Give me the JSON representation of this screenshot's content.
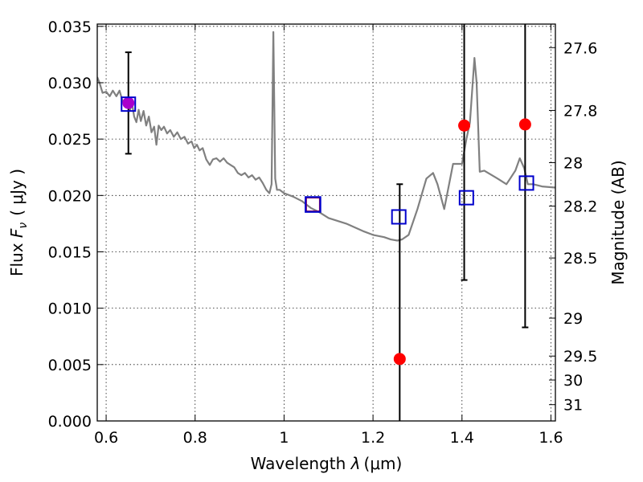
{
  "chart_data": {
    "type": "scatter",
    "title": "",
    "xlabel": "Wavelength  λ (μm)",
    "ylabel": "Flux  F_ν  ( μJy )",
    "ylabel_parts": {
      "prefix": "Flux ",
      "symbol": "F",
      "subscript": "ν",
      "unit": "( μJy )"
    },
    "xlabel_parts": {
      "prefix": "Wavelength ",
      "symbol": "λ",
      "unit": "(μm)"
    },
    "y2label": "Magnitude (AB)",
    "xlim": [
      0.58,
      1.61
    ],
    "ylim": [
      0.0,
      0.0352
    ],
    "grid": true,
    "x_ticks": [
      {
        "value": 0.6,
        "label": "0.6"
      },
      {
        "value": 0.8,
        "label": "0.8"
      },
      {
        "value": 1.0,
        "label": "1"
      },
      {
        "value": 1.2,
        "label": "1.2"
      },
      {
        "value": 1.4,
        "label": "1.4"
      },
      {
        "value": 1.6,
        "label": "1.6"
      }
    ],
    "y_ticks": [
      {
        "value": 0.0,
        "label": "0.000"
      },
      {
        "value": 0.005,
        "label": "0.005"
      },
      {
        "value": 0.01,
        "label": "0.010"
      },
      {
        "value": 0.015,
        "label": "0.015"
      },
      {
        "value": 0.02,
        "label": "0.020"
      },
      {
        "value": 0.025,
        "label": "0.025"
      },
      {
        "value": 0.03,
        "label": "0.030"
      },
      {
        "value": 0.035,
        "label": "0.035"
      }
    ],
    "y2_ticks": [
      {
        "mag": 27.6,
        "label": "27.6"
      },
      {
        "mag": 27.8,
        "label": "27.8"
      },
      {
        "mag": 28.0,
        "label": "28"
      },
      {
        "mag": 28.2,
        "label": "28.2"
      },
      {
        "mag": 28.5,
        "label": "28.5"
      },
      {
        "mag": 29.0,
        "label": "29"
      },
      {
        "mag": 29.5,
        "label": "29.5"
      },
      {
        "mag": 30.0,
        "label": "30"
      },
      {
        "mag": 31.0,
        "label": "31"
      }
    ],
    "series": [
      {
        "kind": "line",
        "color": "#808080",
        "x": [
          0.58,
          0.585,
          0.592,
          0.6,
          0.608,
          0.615,
          0.623,
          0.63,
          0.636,
          0.641,
          0.647,
          0.653,
          0.658,
          0.663,
          0.668,
          0.673,
          0.678,
          0.684,
          0.69,
          0.696,
          0.702,
          0.708,
          0.713,
          0.718,
          0.724,
          0.73,
          0.737,
          0.744,
          0.752,
          0.76,
          0.768,
          0.776,
          0.784,
          0.792,
          0.798,
          0.804,
          0.81,
          0.817,
          0.825,
          0.833,
          0.84,
          0.848,
          0.856,
          0.864,
          0.872,
          0.88,
          0.888,
          0.896,
          0.904,
          0.912,
          0.92,
          0.928,
          0.936,
          0.944,
          0.952,
          0.96,
          0.967,
          0.972,
          0.976,
          0.98,
          0.984,
          0.99,
          1.0,
          1.02,
          1.04,
          1.06,
          1.08,
          1.1,
          1.14,
          1.18,
          1.2,
          1.225,
          1.24,
          1.255,
          1.265,
          1.28,
          1.3,
          1.32,
          1.335,
          1.345,
          1.36,
          1.38,
          1.39,
          1.4,
          1.41,
          1.418,
          1.428,
          1.433,
          1.44,
          1.45,
          1.48,
          1.5,
          1.52,
          1.53,
          1.54,
          1.548,
          1.56,
          1.58,
          1.61
        ],
        "y": [
          0.0305,
          0.03,
          0.0291,
          0.0292,
          0.0288,
          0.0293,
          0.0288,
          0.0293,
          0.0285,
          0.028,
          0.0286,
          0.0275,
          0.0282,
          0.027,
          0.0265,
          0.0276,
          0.0266,
          0.0275,
          0.0262,
          0.027,
          0.0256,
          0.0261,
          0.0245,
          0.0262,
          0.0258,
          0.0261,
          0.0255,
          0.0258,
          0.0252,
          0.0256,
          0.025,
          0.0252,
          0.0246,
          0.0248,
          0.0242,
          0.0245,
          0.024,
          0.0242,
          0.0232,
          0.0227,
          0.0232,
          0.0233,
          0.023,
          0.0233,
          0.0229,
          0.0227,
          0.0225,
          0.022,
          0.0218,
          0.022,
          0.0216,
          0.0218,
          0.0214,
          0.0216,
          0.0211,
          0.0205,
          0.0202,
          0.021,
          0.0345,
          0.0215,
          0.0205,
          0.0205,
          0.0202,
          0.0199,
          0.0195,
          0.0189,
          0.0185,
          0.018,
          0.0175,
          0.0168,
          0.0165,
          0.0163,
          0.0161,
          0.016,
          0.0161,
          0.0165,
          0.0188,
          0.0215,
          0.022,
          0.021,
          0.0188,
          0.0228,
          0.0228,
          0.0228,
          0.025,
          0.0265,
          0.0322,
          0.03,
          0.0221,
          0.0222,
          0.0215,
          0.021,
          0.0222,
          0.0233,
          0.0224,
          0.021,
          0.021,
          0.0208,
          0.0207
        ]
      },
      {
        "kind": "errorbar",
        "color": "#000000",
        "x": [
          0.65,
          1.26,
          1.405,
          1.542
        ],
        "y": [
          0.0282,
          0.0055,
          0.0262,
          0.0263
        ],
        "yerr_low": [
          0.0237,
          0.0,
          0.0125,
          0.0083
        ],
        "yerr_high": [
          0.0327,
          0.021,
          0.036,
          0.036
        ]
      },
      {
        "kind": "marker-circle",
        "color": "#ff0000",
        "x": [
          0.65,
          1.26,
          1.405,
          1.542
        ],
        "y": [
          0.0282,
          0.0055,
          0.0262,
          0.0263
        ]
      },
      {
        "kind": "marker-square",
        "color": "#0000cc",
        "x": [
          0.65,
          1.065,
          1.258,
          1.41,
          1.545
        ],
        "y": [
          0.0281,
          0.0192,
          0.0181,
          0.0198,
          0.0211
        ]
      }
    ],
    "overlap_colors": {
      "purple": "#aa00cc",
      "red_fill": "#ff0000"
    }
  }
}
